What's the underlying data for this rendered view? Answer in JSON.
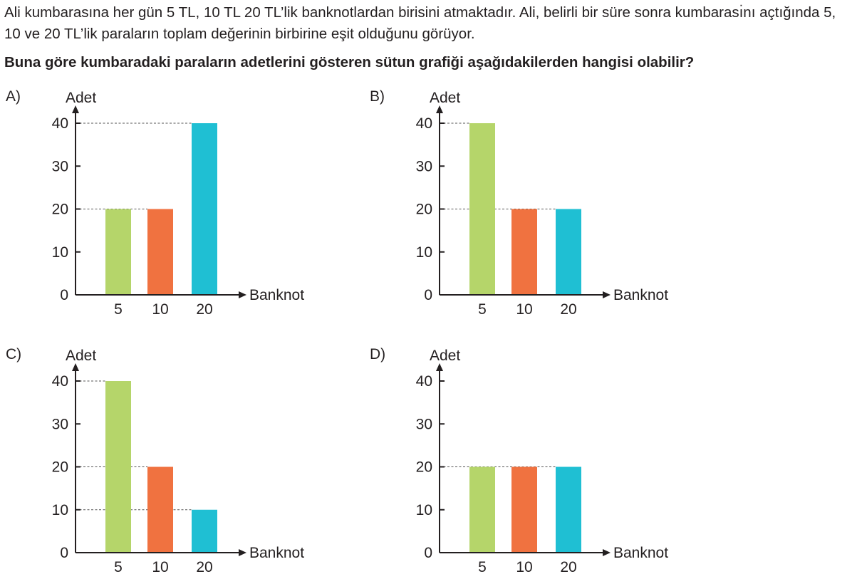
{
  "question": {
    "intro": "Ali kumbarasına her gün 5 TL, 10 TL 20 TL’lik banknotlardan birisini atmaktadır. Ali, belirli bir süre sonra kumbarası̇nı açtığında 5, 10 ve 20 TL’lik paraların toplam değerinin birbirine eşit olduğunu görüyor.",
    "prompt": "Buna göre kumbaradaki paraların adetlerini gösteren sütun grafiği aşağıdakilerden hangisi olabilir?"
  },
  "colors": {
    "bar_5": "#b5d56a",
    "bar_10": "#f07240",
    "bar_20": "#1fbfd3",
    "axis": "#231f20",
    "guide": "#555555"
  },
  "chart_data": [
    {
      "option": "A)",
      "type": "bar",
      "categories": [
        "5",
        "10",
        "20"
      ],
      "values": [
        20,
        20,
        40
      ],
      "ylabel": "Adet",
      "xlabel": "Banknot",
      "yticks": [
        0,
        10,
        20,
        30,
        40
      ],
      "ylim": [
        0,
        40
      ],
      "grid": false
    },
    {
      "option": "B)",
      "type": "bar",
      "categories": [
        "5",
        "10",
        "20"
      ],
      "values": [
        40,
        20,
        20
      ],
      "ylabel": "Adet",
      "xlabel": "Banknot",
      "yticks": [
        0,
        10,
        20,
        30,
        40
      ],
      "ylim": [
        0,
        40
      ],
      "grid": false
    },
    {
      "option": "C)",
      "type": "bar",
      "categories": [
        "5",
        "10",
        "20"
      ],
      "values": [
        40,
        20,
        10
      ],
      "ylabel": "Adet",
      "xlabel": "Banknot",
      "yticks": [
        0,
        10,
        20,
        30,
        40
      ],
      "ylim": [
        0,
        40
      ],
      "grid": false
    },
    {
      "option": "D)",
      "type": "bar",
      "categories": [
        "5",
        "10",
        "20"
      ],
      "values": [
        20,
        20,
        20
      ],
      "ylabel": "Adet",
      "xlabel": "Banknot",
      "yticks": [
        0,
        10,
        20,
        30,
        40
      ],
      "ylim": [
        0,
        40
      ],
      "grid": false
    }
  ]
}
